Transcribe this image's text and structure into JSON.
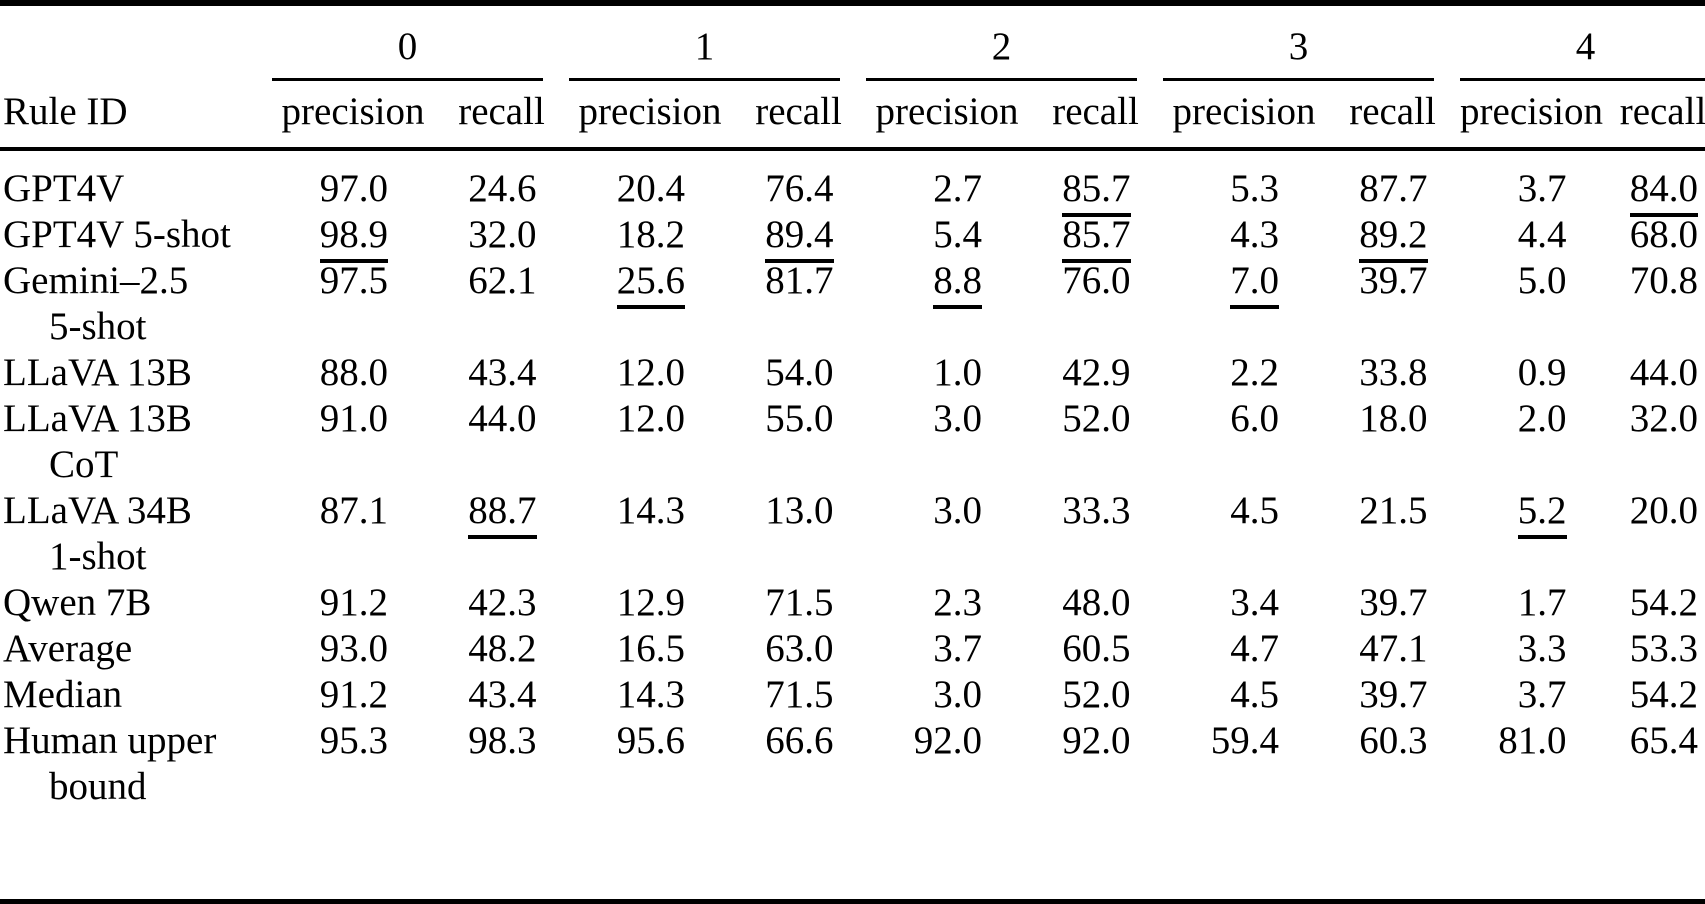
{
  "page": {
    "background": "#ffffff",
    "text_color": "#000000"
  },
  "table": {
    "corner_label": "Rule ID",
    "groups": [
      {
        "label": "0"
      },
      {
        "label": "1"
      },
      {
        "label": "2"
      },
      {
        "label": "3"
      },
      {
        "label": "4"
      }
    ],
    "sub_headers": [
      "precision",
      "recall"
    ],
    "rows": [
      {
        "label_line1": "GPT4V",
        "label_line2": "",
        "cells": [
          {
            "v": "97.0",
            "u": false
          },
          {
            "v": "24.6",
            "u": false
          },
          {
            "v": "20.4",
            "u": false
          },
          {
            "v": "76.4",
            "u": false
          },
          {
            "v": "2.7",
            "u": false
          },
          {
            "v": "85.7",
            "u": true
          },
          {
            "v": "5.3",
            "u": false
          },
          {
            "v": "87.7",
            "u": false
          },
          {
            "v": "3.7",
            "u": false
          },
          {
            "v": "84.0",
            "u": true
          }
        ]
      },
      {
        "label_line1": "GPT4V 5-shot",
        "label_line2": "",
        "cells": [
          {
            "v": "98.9",
            "u": true
          },
          {
            "v": "32.0",
            "u": false
          },
          {
            "v": "18.2",
            "u": false
          },
          {
            "v": "89.4",
            "u": true
          },
          {
            "v": "5.4",
            "u": false
          },
          {
            "v": "85.7",
            "u": true
          },
          {
            "v": "4.3",
            "u": false
          },
          {
            "v": "89.2",
            "u": true
          },
          {
            "v": "4.4",
            "u": false
          },
          {
            "v": "68.0",
            "u": false
          }
        ]
      },
      {
        "label_line1": "Gemini–2.5",
        "label_line2": "5-shot",
        "cells": [
          {
            "v": "97.5",
            "u": false
          },
          {
            "v": "62.1",
            "u": false
          },
          {
            "v": "25.6",
            "u": true
          },
          {
            "v": "81.7",
            "u": false
          },
          {
            "v": "8.8",
            "u": true
          },
          {
            "v": "76.0",
            "u": false
          },
          {
            "v": "7.0",
            "u": true
          },
          {
            "v": "39.7",
            "u": false
          },
          {
            "v": "5.0",
            "u": false
          },
          {
            "v": "70.8",
            "u": false
          }
        ]
      },
      {
        "label_line1": "LLaVA 13B",
        "label_line2": "",
        "cells": [
          {
            "v": "88.0",
            "u": false
          },
          {
            "v": "43.4",
            "u": false
          },
          {
            "v": "12.0",
            "u": false
          },
          {
            "v": "54.0",
            "u": false
          },
          {
            "v": "1.0",
            "u": false
          },
          {
            "v": "42.9",
            "u": false
          },
          {
            "v": "2.2",
            "u": false
          },
          {
            "v": "33.8",
            "u": false
          },
          {
            "v": "0.9",
            "u": false
          },
          {
            "v": "44.0",
            "u": false
          }
        ]
      },
      {
        "label_line1": "LLaVA 13B",
        "label_line2": "CoT",
        "cells": [
          {
            "v": "91.0",
            "u": false
          },
          {
            "v": "44.0",
            "u": false
          },
          {
            "v": "12.0",
            "u": false
          },
          {
            "v": "55.0",
            "u": false
          },
          {
            "v": "3.0",
            "u": false
          },
          {
            "v": "52.0",
            "u": false
          },
          {
            "v": "6.0",
            "u": false
          },
          {
            "v": "18.0",
            "u": false
          },
          {
            "v": "2.0",
            "u": false
          },
          {
            "v": "32.0",
            "u": false
          }
        ]
      },
      {
        "label_line1": "LLaVA 34B",
        "label_line2": "1-shot",
        "cells": [
          {
            "v": "87.1",
            "u": false
          },
          {
            "v": "88.7",
            "u": true
          },
          {
            "v": "14.3",
            "u": false
          },
          {
            "v": "13.0",
            "u": false
          },
          {
            "v": "3.0",
            "u": false
          },
          {
            "v": "33.3",
            "u": false
          },
          {
            "v": "4.5",
            "u": false
          },
          {
            "v": "21.5",
            "u": false
          },
          {
            "v": "5.2",
            "u": true
          },
          {
            "v": "20.0",
            "u": false
          }
        ]
      },
      {
        "label_line1": "Qwen 7B",
        "label_line2": "",
        "cells": [
          {
            "v": "91.2",
            "u": false
          },
          {
            "v": "42.3",
            "u": false
          },
          {
            "v": "12.9",
            "u": false
          },
          {
            "v": "71.5",
            "u": false
          },
          {
            "v": "2.3",
            "u": false
          },
          {
            "v": "48.0",
            "u": false
          },
          {
            "v": "3.4",
            "u": false
          },
          {
            "v": "39.7",
            "u": false
          },
          {
            "v": "1.7",
            "u": false
          },
          {
            "v": "54.2",
            "u": false
          }
        ]
      },
      {
        "label_line1": "Average",
        "label_line2": "",
        "cells": [
          {
            "v": "93.0",
            "u": false
          },
          {
            "v": "48.2",
            "u": false
          },
          {
            "v": "16.5",
            "u": false
          },
          {
            "v": "63.0",
            "u": false
          },
          {
            "v": "3.7",
            "u": false
          },
          {
            "v": "60.5",
            "u": false
          },
          {
            "v": "4.7",
            "u": false
          },
          {
            "v": "47.1",
            "u": false
          },
          {
            "v": "3.3",
            "u": false
          },
          {
            "v": "53.3",
            "u": false
          }
        ]
      },
      {
        "label_line1": "Median",
        "label_line2": "",
        "cells": [
          {
            "v": "91.2",
            "u": false
          },
          {
            "v": "43.4",
            "u": false
          },
          {
            "v": "14.3",
            "u": false
          },
          {
            "v": "71.5",
            "u": false
          },
          {
            "v": "3.0",
            "u": false
          },
          {
            "v": "52.0",
            "u": false
          },
          {
            "v": "4.5",
            "u": false
          },
          {
            "v": "39.7",
            "u": false
          },
          {
            "v": "3.7",
            "u": false
          },
          {
            "v": "54.2",
            "u": false
          }
        ]
      },
      {
        "label_line1": "Human upper",
        "label_line2": "bound",
        "cells": [
          {
            "v": "95.3",
            "u": false
          },
          {
            "v": "98.3",
            "u": false
          },
          {
            "v": "95.6",
            "u": false
          },
          {
            "v": "66.6",
            "u": false
          },
          {
            "v": "92.0",
            "u": false
          },
          {
            "v": "92.0",
            "u": false
          },
          {
            "v": "59.4",
            "u": false
          },
          {
            "v": "60.3",
            "u": false
          },
          {
            "v": "81.0",
            "u": false
          },
          {
            "v": "65.4",
            "u": false
          }
        ]
      }
    ]
  }
}
